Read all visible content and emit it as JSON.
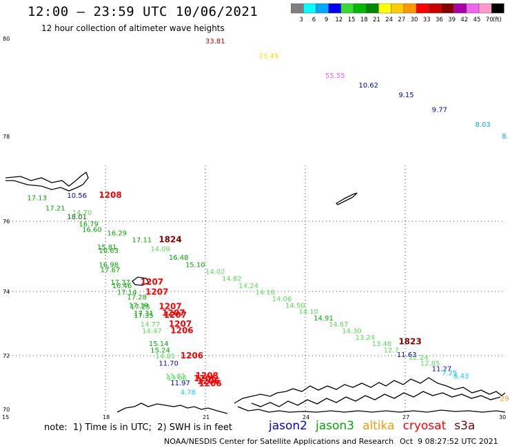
{
  "header": {
    "title": "12:00 – 23:59 UTC 10/06/2021",
    "subtitle": "12 hour collection of altimeter wave heights"
  },
  "color_scale": {
    "unit": "(ft)",
    "bins": [
      {
        "label": "3",
        "color": "#808080"
      },
      {
        "label": "6",
        "color": "#00ffff"
      },
      {
        "label": "9",
        "color": "#00a8ff"
      },
      {
        "label": "12",
        "color": "#0000ff"
      },
      {
        "label": "15",
        "color": "#33dd33"
      },
      {
        "label": "18",
        "color": "#00bb00"
      },
      {
        "label": "21",
        "color": "#008800"
      },
      {
        "label": "24",
        "color": "#ffff00"
      },
      {
        "label": "27",
        "color": "#ffcc00"
      },
      {
        "label": "30",
        "color": "#ff9900"
      },
      {
        "label": "33",
        "color": "#ff0000"
      },
      {
        "label": "36",
        "color": "#cc0000"
      },
      {
        "label": "39",
        "color": "#880000"
      },
      {
        "label": "42",
        "color": "#aa00aa"
      },
      {
        "label": "45",
        "color": "#ee66ee"
      },
      {
        "label": "70",
        "color": "#ff99cc"
      },
      {
        "label": "",
        "color": "#000000"
      }
    ]
  },
  "axes": {
    "lat_labels": [
      "80",
      "78",
      "76",
      "74",
      "72",
      "70"
    ],
    "lon_labels": [
      "15",
      "18",
      "21",
      "24",
      "27",
      "30"
    ]
  },
  "observations": [
    {
      "text": "33.81",
      "lon": 21.0,
      "lat": 79.9,
      "color": "#cc0000"
    },
    {
      "text": "23.49",
      "lon": 22.6,
      "lat": 79.6,
      "color": "#e6e600"
    },
    {
      "text": "55.55",
      "lon": 24.6,
      "lat": 79.2,
      "color": "#ee66ee"
    },
    {
      "text": "10.62",
      "lon": 25.6,
      "lat": 79.0,
      "color": "#0000cc"
    },
    {
      "text": "9.15",
      "lon": 26.8,
      "lat": 78.8,
      "color": "#0000cc"
    },
    {
      "text": "9.77",
      "lon": 27.8,
      "lat": 78.5,
      "color": "#0000cc"
    },
    {
      "text": "8.03",
      "lon": 29.1,
      "lat": 78.2,
      "color": "#00a8ff"
    },
    {
      "text": "8.",
      "lon": 29.9,
      "lat": 77.95,
      "color": "#00a8ff"
    },
    {
      "text": "17.13",
      "lon": 15.65,
      "lat": 76.5,
      "color": "#00aa00"
    },
    {
      "text": "10.56",
      "lon": 16.85,
      "lat": 76.55,
      "color": "#0000cc"
    },
    {
      "text": "1208",
      "lon": 17.8,
      "lat": 76.55,
      "color": "#ff0000",
      "bold": true
    },
    {
      "text": "17.21",
      "lon": 16.2,
      "lat": 76.25,
      "color": "#00aa00"
    },
    {
      "text": "14.70",
      "lon": 17.0,
      "lat": 76.15,
      "color": "#55dd55"
    },
    {
      "text": "18.01",
      "lon": 16.85,
      "lat": 76.05,
      "color": "#006600"
    },
    {
      "text": "16.79",
      "lon": 17.2,
      "lat": 75.85,
      "color": "#00aa00"
    },
    {
      "text": "16.60",
      "lon": 17.3,
      "lat": 75.7,
      "color": "#00aa00"
    },
    {
      "text": "16.29",
      "lon": 18.05,
      "lat": 75.6,
      "color": "#00aa00"
    },
    {
      "text": "17.11",
      "lon": 18.8,
      "lat": 75.4,
      "color": "#00aa00"
    },
    {
      "text": "1824",
      "lon": 19.6,
      "lat": 75.4,
      "color": "#880000",
      "bold": true
    },
    {
      "text": "14.09",
      "lon": 19.35,
      "lat": 75.15,
      "color": "#55dd55"
    },
    {
      "text": "15.81",
      "lon": 17.75,
      "lat": 75.2,
      "color": "#00aa00"
    },
    {
      "text": "16.63",
      "lon": 17.8,
      "lat": 75.1,
      "color": "#00aa00"
    },
    {
      "text": "16.48",
      "lon": 19.9,
      "lat": 74.9,
      "color": "#00aa00"
    },
    {
      "text": "15.10",
      "lon": 20.4,
      "lat": 74.7,
      "color": "#00aa00"
    },
    {
      "text": "16.98",
      "lon": 17.8,
      "lat": 74.7,
      "color": "#00aa00"
    },
    {
      "text": "17.67",
      "lon": 17.85,
      "lat": 74.55,
      "color": "#00aa00"
    },
    {
      "text": "14.02",
      "lon": 21.0,
      "lat": 74.5,
      "color": "#55dd55"
    },
    {
      "text": "14.82",
      "lon": 21.5,
      "lat": 74.3,
      "color": "#55dd55"
    },
    {
      "text": "17.37",
      "lon": 18.15,
      "lat": 74.2,
      "color": "#00aa00"
    },
    {
      "text": "16.46",
      "lon": 18.2,
      "lat": 74.1,
      "color": "#00aa00"
    },
    {
      "text": "1207",
      "lon": 19.05,
      "lat": 74.2,
      "color": "#ff0000",
      "bold": true
    },
    {
      "text": "14.24",
      "lon": 22.0,
      "lat": 74.1,
      "color": "#55dd55"
    },
    {
      "text": "17.14",
      "lon": 18.35,
      "lat": 73.9,
      "color": "#00aa00"
    },
    {
      "text": "1207",
      "lon": 19.2,
      "lat": 73.9,
      "color": "#ff0000",
      "bold": true
    },
    {
      "text": "14.16",
      "lon": 22.5,
      "lat": 73.9,
      "color": "#55dd55"
    },
    {
      "text": "17.28",
      "lon": 18.65,
      "lat": 73.75,
      "color": "#00aa00"
    },
    {
      "text": "14.06",
      "lon": 23.0,
      "lat": 73.7,
      "color": "#55dd55"
    },
    {
      "text": "17.39",
      "lon": 18.7,
      "lat": 73.5,
      "color": "#00aa00"
    },
    {
      "text": "17.25",
      "lon": 18.75,
      "lat": 73.45,
      "color": "#00aa00"
    },
    {
      "text": "1207",
      "lon": 19.6,
      "lat": 73.45,
      "color": "#ff0000",
      "bold": true
    },
    {
      "text": "14.50",
      "lon": 23.4,
      "lat": 73.5,
      "color": "#55dd55"
    },
    {
      "text": "17.31",
      "lon": 18.85,
      "lat": 73.25,
      "color": "#00aa00"
    },
    {
      "text": "17.35",
      "lon": 18.85,
      "lat": 73.18,
      "color": "#00aa00"
    },
    {
      "text": "1207",
      "lon": 19.7,
      "lat": 73.25,
      "color": "#ff0000",
      "bold": true
    },
    {
      "text": "1207",
      "lon": 19.75,
      "lat": 73.18,
      "color": "#ff0000",
      "bold": true
    },
    {
      "text": "14.10",
      "lon": 23.8,
      "lat": 73.3,
      "color": "#55dd55"
    },
    {
      "text": "14.91",
      "lon": 24.25,
      "lat": 73.1,
      "color": "#00aa00"
    },
    {
      "text": "14.77",
      "lon": 19.05,
      "lat": 72.9,
      "color": "#55dd55"
    },
    {
      "text": "1207",
      "lon": 19.9,
      "lat": 72.9,
      "color": "#ff0000",
      "bold": true
    },
    {
      "text": "14.67",
      "lon": 24.7,
      "lat": 72.9,
      "color": "#55dd55"
    },
    {
      "text": "14.47",
      "lon": 19.1,
      "lat": 72.7,
      "color": "#55dd55"
    },
    {
      "text": "1206",
      "lon": 19.95,
      "lat": 72.7,
      "color": "#ff0000",
      "bold": true
    },
    {
      "text": "14.30",
      "lon": 25.1,
      "lat": 72.7,
      "color": "#55dd55"
    },
    {
      "text": "13.24",
      "lon": 25.5,
      "lat": 72.5,
      "color": "#55dd55"
    },
    {
      "text": "13.46",
      "lon": 26.0,
      "lat": 72.3,
      "color": "#55dd55"
    },
    {
      "text": "1823",
      "lon": 26.8,
      "lat": 72.35,
      "color": "#880000",
      "bold": true
    },
    {
      "text": "15.14",
      "lon": 19.3,
      "lat": 72.3,
      "color": "#00aa00"
    },
    {
      "text": "15.24",
      "lon": 19.35,
      "lat": 72.1,
      "color": "#00aa00"
    },
    {
      "text": "12.7",
      "lon": 26.35,
      "lat": 72.1,
      "color": "#55dd55"
    },
    {
      "text": "11.63",
      "lon": 26.75,
      "lat": 71.95,
      "color": "#0000cc"
    },
    {
      "text": "14.81",
      "lon": 19.5,
      "lat": 71.9,
      "color": "#55dd55"
    },
    {
      "text": "1206",
      "lon": 20.25,
      "lat": 71.9,
      "color": "#ff0000",
      "bold": true
    },
    {
      "text": "12.24",
      "lon": 27.1,
      "lat": 71.85,
      "color": "#55dd55"
    },
    {
      "text": "11.70",
      "lon": 19.6,
      "lat": 71.65,
      "color": "#0000cc"
    },
    {
      "text": "12.85",
      "lon": 27.45,
      "lat": 71.65,
      "color": "#55dd55"
    },
    {
      "text": "11.27",
      "lon": 27.8,
      "lat": 71.45,
      "color": "#0000cc"
    },
    {
      "text": "7.25",
      "lon": 28.1,
      "lat": 71.3,
      "color": "#00d0ff"
    },
    {
      "text": "6.43",
      "lon": 28.45,
      "lat": 71.2,
      "color": "#00d0ff"
    },
    {
      "text": "13.83",
      "lon": 19.8,
      "lat": 71.2,
      "color": "#55dd55"
    },
    {
      "text": "13.06",
      "lon": 19.85,
      "lat": 71.12,
      "color": "#55dd55"
    },
    {
      "text": "1208",
      "lon": 20.7,
      "lat": 71.2,
      "color": "#ff0000",
      "bold": true
    },
    {
      "text": "1206",
      "lon": 20.65,
      "lat": 71.1,
      "color": "#ff0000",
      "bold": true
    },
    {
      "text": "1206",
      "lon": 20.75,
      "lat": 71.0,
      "color": "#ff0000",
      "bold": true
    },
    {
      "text": "11.97",
      "lon": 19.95,
      "lat": 70.95,
      "color": "#0000cc"
    },
    {
      "text": "1206",
      "lon": 20.8,
      "lat": 70.92,
      "color": "#ff0000",
      "bold": true
    },
    {
      "text": "4.78",
      "lon": 20.25,
      "lat": 70.62,
      "color": "#00d0ff"
    },
    {
      "text": "29",
      "lon": 29.85,
      "lat": 70.4,
      "color": "#ff9900"
    }
  ],
  "notes": {
    "note": "note:  1) Time is in UTC;  2) SWH is in feet",
    "satellites": [
      {
        "name": "jason2",
        "color": "#0000ee"
      },
      {
        "name": "jason3",
        "color": "#00aa00"
      },
      {
        "name": "altika",
        "color": "#ff9900"
      },
      {
        "name": "cryosat",
        "color": "#ff0000"
      },
      {
        "name": "s3a",
        "color": "#880000"
      }
    ],
    "footer": "NOAA/NESDIS Center for Satellite Applications and Research",
    "footer_date": "Oct  9 08:27:52 UTC 2021"
  }
}
